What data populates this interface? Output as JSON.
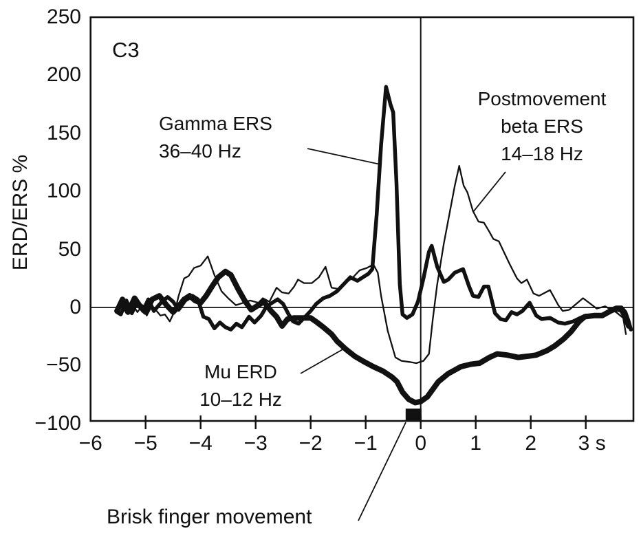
{
  "figure": {
    "electrode_label": "C3",
    "y_axis_label": "ERD/ERS %",
    "annotations": {
      "gamma": "Gamma ERS\n36–40 Hz",
      "beta": "Postmovement\nbeta ERS\n14–18 Hz",
      "mu": "Mu ERD\n10–12 Hz",
      "movement": "Brisk finger movement"
    }
  },
  "chart_data": {
    "type": "line",
    "title": "",
    "xlabel": "",
    "ylabel": "ERD/ERS %",
    "xlim": [
      -6,
      3.87
    ],
    "ylim": [
      -100,
      250
    ],
    "x_unit": "s",
    "grid": false,
    "zero_line": true,
    "time_zero_line": true,
    "x_ticks": [
      {
        "t": -6,
        "label": "−6",
        "tick": false,
        "dx": 0
      },
      {
        "t": -5,
        "label": "−5",
        "tick": true,
        "dx": 0
      },
      {
        "t": -4,
        "label": "−4",
        "tick": true,
        "dx": 0
      },
      {
        "t": -3,
        "label": "−3",
        "tick": true,
        "dx": 0
      },
      {
        "t": -2,
        "label": "−2",
        "tick": true,
        "dx": 0
      },
      {
        "t": -1,
        "label": "−1",
        "tick": true,
        "dx": 0
      },
      {
        "t": 0,
        "label": "0",
        "tick": true,
        "dx": 0
      },
      {
        "t": 1,
        "label": "1",
        "tick": true,
        "dx": 0
      },
      {
        "t": 2,
        "label": "2",
        "tick": true,
        "dx": 0
      },
      {
        "t": 3,
        "label": "3 s",
        "tick": true,
        "dx": 9
      }
    ],
    "y_ticks": [
      {
        "v": 250,
        "label": "250"
      },
      {
        "v": 200,
        "label": "200"
      },
      {
        "v": 150,
        "label": "150"
      },
      {
        "v": 100,
        "label": "100"
      },
      {
        "v": 50,
        "label": "50"
      },
      {
        "v": 0,
        "label": "0"
      },
      {
        "v": -50,
        "label": "−50"
      },
      {
        "v": -100,
        "label": "−100"
      }
    ],
    "movement_marker": {
      "t_center": -0.13,
      "label": "Brisk finger movement"
    },
    "line_color": "#111111",
    "series": [
      {
        "name": "Gamma ERS 36–40 Hz",
        "stroke_width": 5.5,
        "points": [
          [
            -5.52,
            -4
          ],
          [
            -5.45,
            -6
          ],
          [
            -5.35,
            6
          ],
          [
            -5.25,
            -5
          ],
          [
            -5.15,
            5
          ],
          [
            -5.05,
            -3
          ],
          [
            -4.95,
            7
          ],
          [
            -4.85,
            -3
          ],
          [
            -4.72,
            4
          ],
          [
            -4.6,
            9
          ],
          [
            -4.5,
            5
          ],
          [
            -4.4,
            -2
          ],
          [
            -4.28,
            6
          ],
          [
            -4.15,
            10
          ],
          [
            -4.05,
            7
          ],
          [
            -3.95,
            -8
          ],
          [
            -3.85,
            -10
          ],
          [
            -3.75,
            -18
          ],
          [
            -3.65,
            -13
          ],
          [
            -3.55,
            -17
          ],
          [
            -3.45,
            -19
          ],
          [
            -3.35,
            -14
          ],
          [
            -3.25,
            -17
          ],
          [
            -3.12,
            -8
          ],
          [
            -3.02,
            -13
          ],
          [
            -2.9,
            -7
          ],
          [
            -2.8,
            1
          ],
          [
            -2.7,
            4
          ],
          [
            -2.6,
            7
          ],
          [
            -2.5,
            3
          ],
          [
            -2.4,
            -6
          ],
          [
            -2.32,
            -12
          ],
          [
            -2.22,
            -14
          ],
          [
            -2.1,
            -8
          ],
          [
            -2.0,
            -3
          ],
          [
            -1.9,
            3
          ],
          [
            -1.77,
            8
          ],
          [
            -1.65,
            10
          ],
          [
            -1.52,
            14
          ],
          [
            -1.4,
            20
          ],
          [
            -1.28,
            26
          ],
          [
            -1.15,
            23
          ],
          [
            -1.05,
            26
          ],
          [
            -0.95,
            29
          ],
          [
            -0.88,
            33
          ],
          [
            -0.8,
            80
          ],
          [
            -0.72,
            140
          ],
          [
            -0.63,
            190
          ],
          [
            -0.55,
            175
          ],
          [
            -0.5,
            168
          ],
          [
            -0.44,
            107
          ],
          [
            -0.38,
            20
          ],
          [
            -0.33,
            -6
          ],
          [
            -0.25,
            -9
          ],
          [
            -0.15,
            -6
          ],
          [
            -0.05,
            5
          ],
          [
            0.05,
            25
          ],
          [
            0.15,
            48
          ],
          [
            0.2,
            53
          ],
          [
            0.3,
            35
          ],
          [
            0.42,
            22
          ],
          [
            0.5,
            24
          ],
          [
            0.62,
            30
          ],
          [
            0.77,
            33
          ],
          [
            0.88,
            18
          ],
          [
            0.95,
            10
          ],
          [
            1.05,
            9
          ],
          [
            1.15,
            18
          ],
          [
            1.23,
            18
          ],
          [
            1.35,
            -5
          ],
          [
            1.45,
            -10
          ],
          [
            1.55,
            -11
          ],
          [
            1.65,
            -4
          ],
          [
            1.75,
            -6
          ],
          [
            1.85,
            -3
          ],
          [
            1.98,
            4
          ],
          [
            2.1,
            -7
          ],
          [
            2.2,
            -10
          ],
          [
            2.35,
            -9
          ],
          [
            2.5,
            -13
          ],
          [
            2.62,
            -14
          ],
          [
            2.77,
            -12
          ],
          [
            2.9,
            -9
          ],
          [
            3.0,
            -7
          ],
          [
            3.15,
            -7
          ],
          [
            3.3,
            -7
          ],
          [
            3.45,
            -2
          ],
          [
            3.55,
            0
          ],
          [
            3.65,
            0
          ],
          [
            3.72,
            -4
          ],
          [
            3.78,
            -12
          ],
          [
            3.82,
            -19
          ]
        ]
      },
      {
        "name": "Postmovement beta ERS 14–18 Hz",
        "stroke_width": 2.3,
        "points": [
          [
            -5.52,
            -4
          ],
          [
            -5.45,
            3
          ],
          [
            -5.35,
            -5
          ],
          [
            -5.25,
            4
          ],
          [
            -5.15,
            -4
          ],
          [
            -5.05,
            2
          ],
          [
            -4.98,
            -7
          ],
          [
            -4.9,
            0
          ],
          [
            -4.8,
            -3
          ],
          [
            -4.73,
            -7
          ],
          [
            -4.65,
            -6
          ],
          [
            -4.56,
            -12
          ],
          [
            -4.46,
            -2
          ],
          [
            -4.4,
            10
          ],
          [
            -4.3,
            25
          ],
          [
            -4.22,
            27
          ],
          [
            -4.12,
            34
          ],
          [
            -4.0,
            36
          ],
          [
            -3.87,
            44
          ],
          [
            -3.75,
            28
          ],
          [
            -3.62,
            14
          ],
          [
            -3.5,
            8
          ],
          [
            -3.36,
            2
          ],
          [
            -3.22,
            4
          ],
          [
            -3.1,
            6
          ],
          [
            -2.95,
            4
          ],
          [
            -2.87,
            8
          ],
          [
            -2.75,
            5
          ],
          [
            -2.62,
            17
          ],
          [
            -2.52,
            13
          ],
          [
            -2.4,
            12
          ],
          [
            -2.3,
            18
          ],
          [
            -2.23,
            24
          ],
          [
            -2.12,
            21
          ],
          [
            -1.98,
            21
          ],
          [
            -1.85,
            26
          ],
          [
            -1.73,
            35
          ],
          [
            -1.62,
            17
          ],
          [
            -1.5,
            16
          ],
          [
            -1.38,
            21
          ],
          [
            -1.25,
            25
          ],
          [
            -1.11,
            32
          ],
          [
            -0.98,
            34
          ],
          [
            -0.86,
            37
          ],
          [
            -0.78,
            30
          ],
          [
            -0.72,
            10
          ],
          [
            -0.6,
            -20
          ],
          [
            -0.46,
            -43
          ],
          [
            -0.35,
            -46
          ],
          [
            -0.2,
            -47
          ],
          [
            -0.08,
            -48
          ],
          [
            0.05,
            -46
          ],
          [
            0.15,
            -40
          ],
          [
            0.22,
            -10
          ],
          [
            0.3,
            20
          ],
          [
            0.42,
            55
          ],
          [
            0.52,
            80
          ],
          [
            0.62,
            105
          ],
          [
            0.7,
            122
          ],
          [
            0.78,
            105
          ],
          [
            0.85,
            99
          ],
          [
            0.95,
            83
          ],
          [
            1.05,
            74
          ],
          [
            1.15,
            73
          ],
          [
            1.25,
            65
          ],
          [
            1.32,
            59
          ],
          [
            1.42,
            57
          ],
          [
            1.52,
            47
          ],
          [
            1.62,
            37
          ],
          [
            1.75,
            25
          ],
          [
            1.83,
            21
          ],
          [
            1.93,
            24
          ],
          [
            2.05,
            12
          ],
          [
            2.15,
            10
          ],
          [
            2.35,
            15
          ],
          [
            2.5,
            2
          ],
          [
            2.58,
            -3
          ],
          [
            2.7,
            -2
          ],
          [
            2.95,
            8
          ],
          [
            3.2,
            -1
          ],
          [
            3.35,
            1
          ],
          [
            3.55,
            -4
          ],
          [
            3.68,
            -9
          ],
          [
            3.73,
            -23
          ]
        ]
      },
      {
        "name": "Mu ERD 10–12 Hz",
        "stroke_width": 8,
        "points": [
          [
            -5.52,
            -3
          ],
          [
            -5.42,
            7
          ],
          [
            -5.32,
            -4
          ],
          [
            -5.2,
            8
          ],
          [
            -5.1,
            1
          ],
          [
            -5.0,
            -4
          ],
          [
            -4.88,
            7
          ],
          [
            -4.75,
            10
          ],
          [
            -4.62,
            2
          ],
          [
            -4.5,
            -4
          ],
          [
            -4.4,
            1
          ],
          [
            -4.3,
            7
          ],
          [
            -4.2,
            10
          ],
          [
            -4.1,
            6
          ],
          [
            -4.0,
            4
          ],
          [
            -3.9,
            10
          ],
          [
            -3.78,
            19
          ],
          [
            -3.68,
            26
          ],
          [
            -3.55,
            31
          ],
          [
            -3.45,
            28
          ],
          [
            -3.32,
            16
          ],
          [
            -3.2,
            6
          ],
          [
            -3.08,
            -2
          ],
          [
            -2.95,
            2
          ],
          [
            -2.85,
            5
          ],
          [
            -2.72,
            -3
          ],
          [
            -2.62,
            -8
          ],
          [
            -2.52,
            -16
          ],
          [
            -2.42,
            -10
          ],
          [
            -2.3,
            -9
          ],
          [
            -2.15,
            -9
          ],
          [
            -2.0,
            -9
          ],
          [
            -1.88,
            -13
          ],
          [
            -1.77,
            -17
          ],
          [
            -1.62,
            -23
          ],
          [
            -1.52,
            -29
          ],
          [
            -1.36,
            -36
          ],
          [
            -1.2,
            -42
          ],
          [
            -1.02,
            -47
          ],
          [
            -0.86,
            -51
          ],
          [
            -0.68,
            -55
          ],
          [
            -0.52,
            -60
          ],
          [
            -0.43,
            -64
          ],
          [
            -0.33,
            -73
          ],
          [
            -0.22,
            -79
          ],
          [
            -0.1,
            -82
          ],
          [
            0.0,
            -81
          ],
          [
            0.12,
            -77
          ],
          [
            0.32,
            -64
          ],
          [
            0.5,
            -57
          ],
          [
            0.73,
            -51
          ],
          [
            0.9,
            -49
          ],
          [
            1.07,
            -48
          ],
          [
            1.25,
            -43
          ],
          [
            1.39,
            -40
          ],
          [
            1.57,
            -41
          ],
          [
            1.77,
            -43
          ],
          [
            1.95,
            -42
          ],
          [
            2.1,
            -41
          ],
          [
            2.3,
            -37
          ],
          [
            2.44,
            -33
          ],
          [
            2.6,
            -27
          ],
          [
            2.73,
            -21
          ],
          [
            2.88,
            -12
          ],
          [
            2.98,
            -8
          ],
          [
            3.15,
            -7
          ],
          [
            3.3,
            -7
          ],
          [
            3.45,
            -3
          ],
          [
            3.55,
            -1
          ],
          [
            3.65,
            -2
          ],
          [
            3.72,
            -8
          ],
          [
            3.78,
            -16
          ]
        ]
      }
    ]
  }
}
